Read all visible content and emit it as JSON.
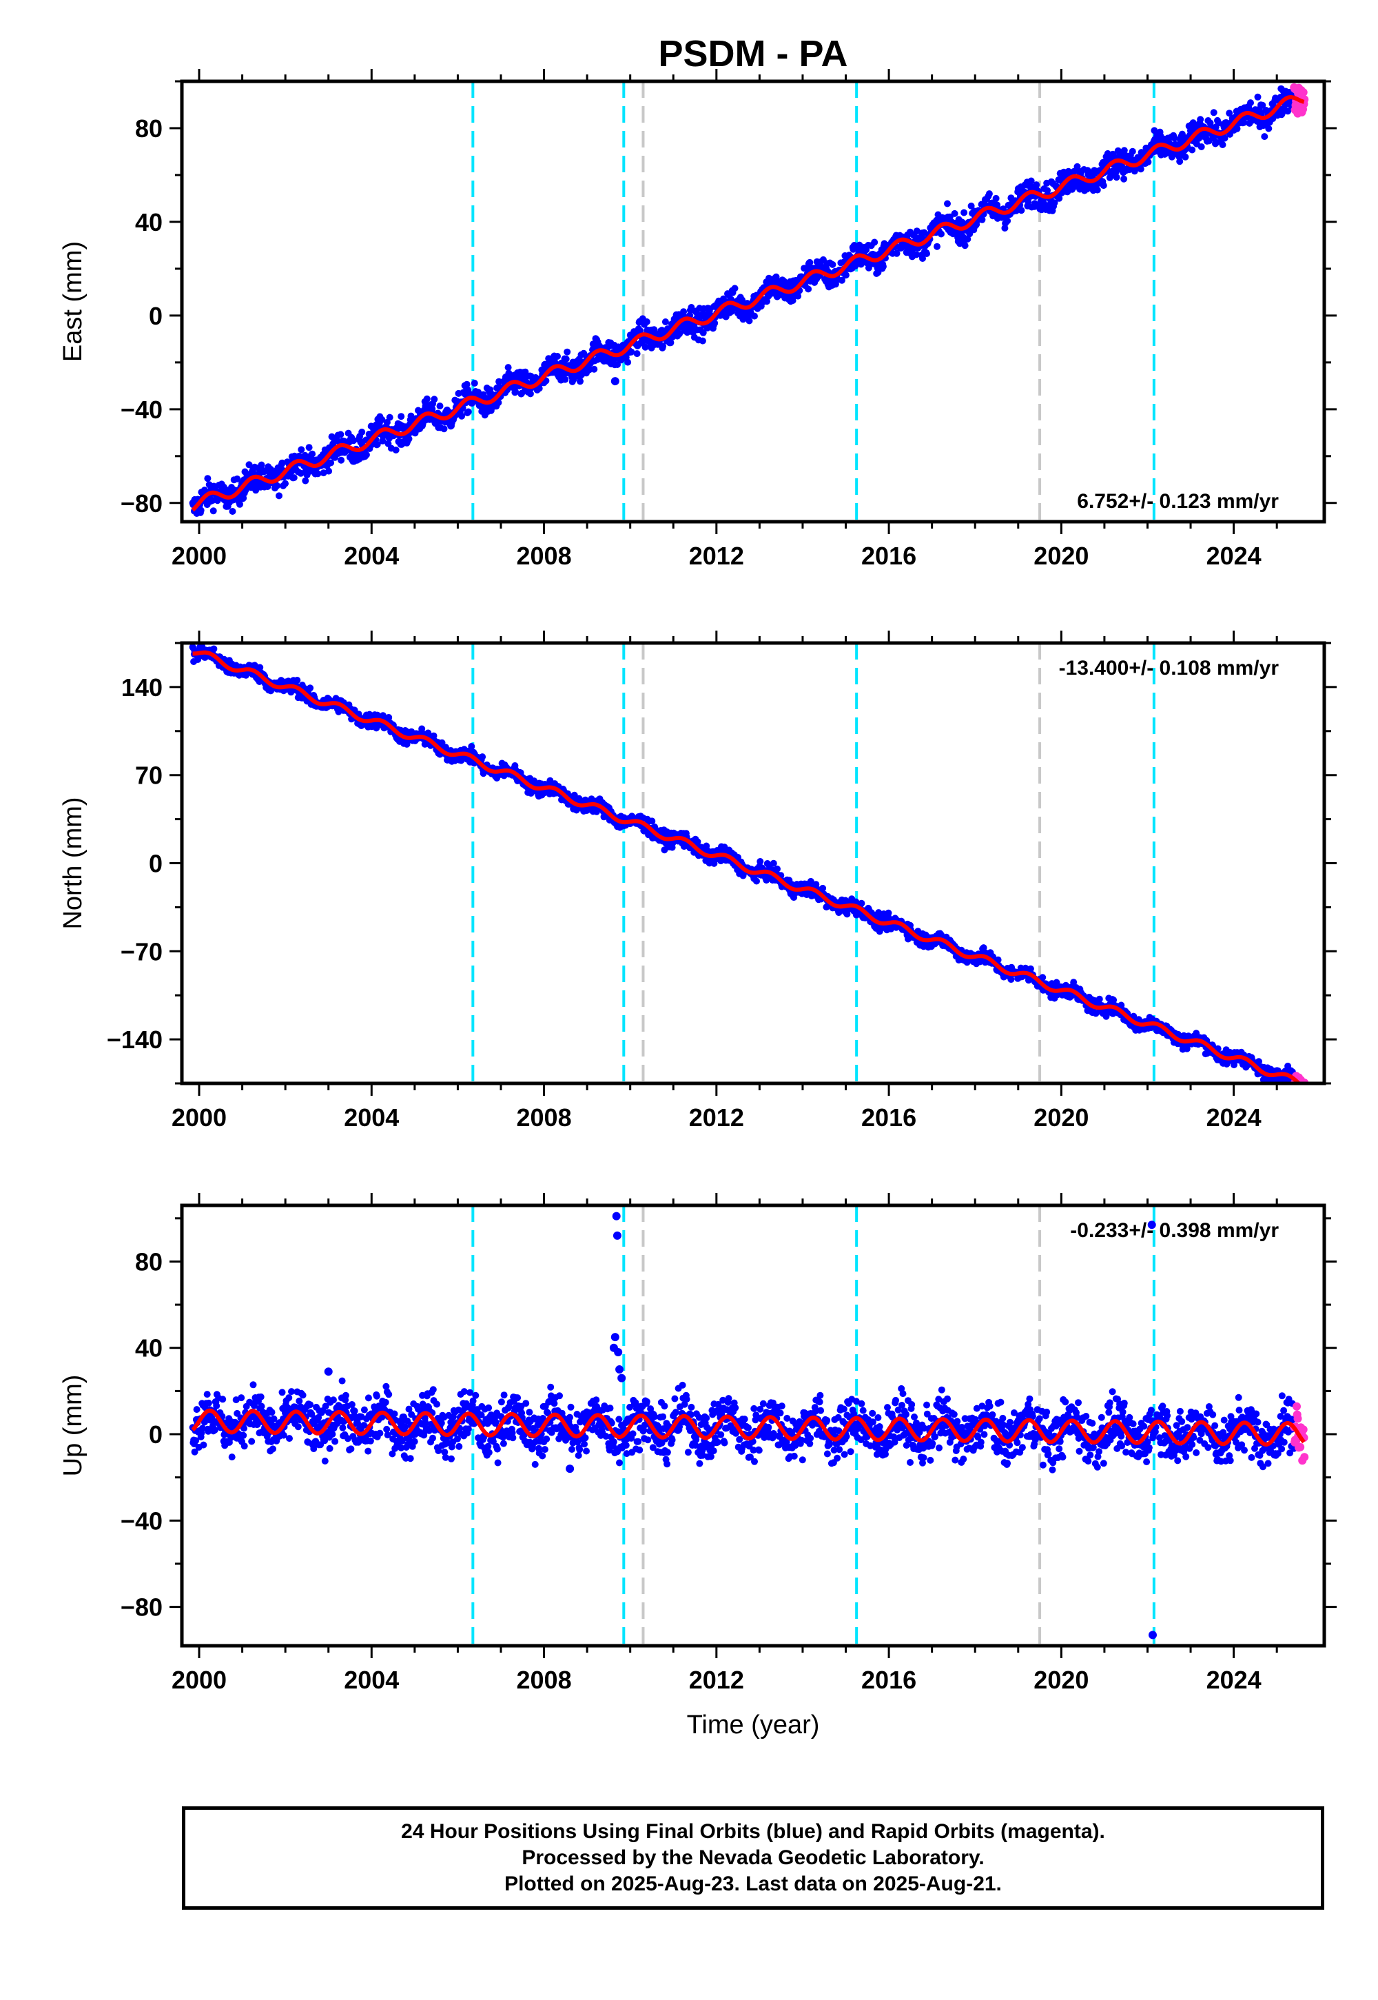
{
  "title": "PSDM - PA",
  "xlabel": "Time (year)",
  "colors": {
    "final_orbits": "#0000ff",
    "rapid_orbits": "#ff33cc",
    "model_fit": "#ff0000",
    "equipment_change_line": "#00e5ff",
    "other_event_line": "#c8c8c8"
  },
  "footer": {
    "line1": "24 Hour Positions Using Final Orbits (blue) and Rapid Orbits (magenta).",
    "line2": "Processed by the Nevada Geodetic Laboratory.",
    "line3": "Plotted on 2025-Aug-23. Last data on 2025-Aug-21."
  },
  "chart_data": [
    {
      "type": "scatter",
      "component": "East",
      "ylabel": "East (mm)",
      "xlim": [
        1999.6,
        2026.1
      ],
      "ylim": [
        -88,
        100
      ],
      "xticks": [
        2000,
        2004,
        2008,
        2012,
        2016,
        2020,
        2024
      ],
      "yticks": [
        -80,
        -40,
        0,
        40,
        80
      ],
      "rate_label": "6.752+/- 0.123 mm/yr",
      "rate_position": "bottom-right",
      "trend": {
        "rate_mm_per_yr": 6.752,
        "value_at_2000": -80,
        "seasonal_amplitude_mm": 2.5
      },
      "scatter_mm": 3,
      "rapid_start_year": 2025.4,
      "data_end_year": 2025.64,
      "outliers": [
        {
          "x": 2009.65,
          "y": -28
        }
      ],
      "cyan_lines": [
        2006.35,
        2009.85,
        2015.25,
        2022.15
      ],
      "gray_lines": [
        2010.3,
        2019.5
      ]
    },
    {
      "type": "scatter",
      "component": "North",
      "ylabel": "North (mm)",
      "xlim": [
        1999.6,
        2026.1
      ],
      "ylim": [
        -175,
        175
      ],
      "xticks": [
        2000,
        2004,
        2008,
        2012,
        2016,
        2020,
        2024
      ],
      "yticks": [
        -140,
        -70,
        0,
        70,
        140
      ],
      "rate_label": "-13.400+/- 0.108 mm/yr",
      "rate_position": "top-right",
      "trend": {
        "rate_mm_per_yr": -13.4,
        "value_at_2000": 167,
        "seasonal_amplitude_mm": 3
      },
      "scatter_mm": 3,
      "rapid_start_year": 2025.4,
      "data_end_year": 2025.64,
      "outliers": [],
      "cyan_lines": [
        2006.35,
        2009.85,
        2015.25,
        2022.15
      ],
      "gray_lines": [
        2010.3,
        2019.5
      ]
    },
    {
      "type": "scatter",
      "component": "Up",
      "ylabel": "Up (mm)",
      "xlim": [
        1999.6,
        2026.1
      ],
      "ylim": [
        -98,
        106
      ],
      "xticks": [
        2000,
        2004,
        2008,
        2012,
        2016,
        2020,
        2024
      ],
      "yticks": [
        -80,
        -40,
        0,
        40,
        80
      ],
      "rate_label": "-0.233+/- 0.398 mm/yr",
      "rate_position": "top-right",
      "trend": {
        "rate_mm_per_yr": -0.233,
        "value_at_2000": 6,
        "seasonal_amplitude_mm": 5
      },
      "scatter_mm": 6,
      "rapid_start_year": 2025.4,
      "data_end_year": 2025.64,
      "outliers": [
        {
          "x": 2009.68,
          "y": 101
        },
        {
          "x": 2009.7,
          "y": 92
        },
        {
          "x": 2009.65,
          "y": 45
        },
        {
          "x": 2009.72,
          "y": 38
        },
        {
          "x": 2009.75,
          "y": 30
        },
        {
          "x": 2009.8,
          "y": 26
        },
        {
          "x": 2009.62,
          "y": 40
        },
        {
          "x": 2008.6,
          "y": -16
        },
        {
          "x": 2003.0,
          "y": 29
        },
        {
          "x": 2022.1,
          "y": 97
        },
        {
          "x": 2022.12,
          "y": -93
        }
      ],
      "cyan_lines": [
        2006.35,
        2009.85,
        2015.25,
        2022.15
      ],
      "gray_lines": [
        2010.3,
        2019.5
      ]
    }
  ]
}
